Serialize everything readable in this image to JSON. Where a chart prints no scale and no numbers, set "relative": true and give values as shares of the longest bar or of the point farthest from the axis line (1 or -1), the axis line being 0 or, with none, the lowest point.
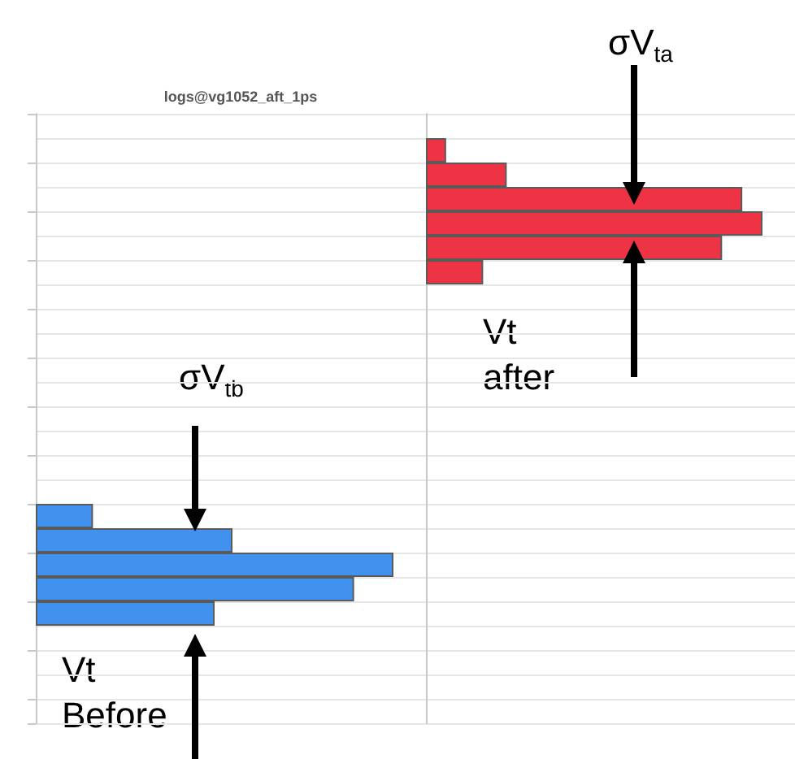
{
  "chart_data": [
    {
      "type": "bar",
      "orientation": "horizontal",
      "relative": true,
      "title": "logs@vg1052_aft_1ps",
      "grid": true,
      "categories": [
        null,
        null,
        null,
        null,
        null
      ],
      "series": [
        {
          "color": "#4191ee",
          "values": [
            0.16,
            0.55,
            1,
            0.89,
            0.5
          ]
        }
      ],
      "annotations": [
        "σV$_{tb}$",
        "Vt Before"
      ]
    },
    {
      "type": "bar",
      "orientation": "horizontal",
      "relative": true,
      "grid": true,
      "categories": [
        null,
        null,
        null,
        null,
        null,
        null
      ],
      "series": [
        {
          "color": "#ee3344",
          "values": [
            0.06,
            0.24,
            0.94,
            1,
            0.88,
            0.17
          ]
        }
      ],
      "annotations": [
        "σV$_{ta}$",
        "Vt after"
      ]
    }
  ]
}
